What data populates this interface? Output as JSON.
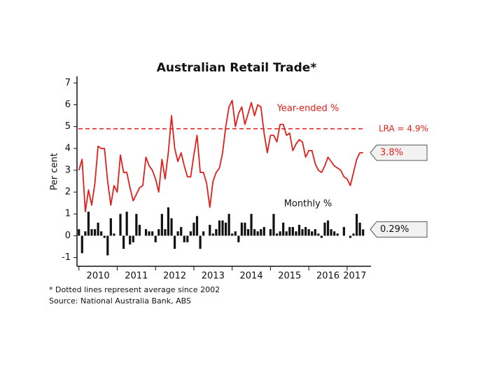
{
  "chart_data": {
    "type": "bar-line",
    "title": "Australian Retail Trade*",
    "ylabel": "Per cent",
    "notes": [
      "* Dotted lines represent average since 2002",
      "Source: National Australia Bank, ABS"
    ],
    "ylim": [
      -1.4,
      7.3
    ],
    "yticks": [
      -1,
      0,
      1,
      2,
      3,
      4,
      5,
      6,
      7
    ],
    "xlim": [
      2009.95,
      2017.55
    ],
    "xticks": [
      {
        "value": 2010.5,
        "label": "2010"
      },
      {
        "value": 2011.5,
        "label": "2011"
      },
      {
        "value": 2012.5,
        "label": "2012"
      },
      {
        "value": 2013.5,
        "label": "2013"
      },
      {
        "value": 2014.5,
        "label": "2014"
      },
      {
        "value": 2015.5,
        "label": "2015"
      },
      {
        "value": 2016.5,
        "label": "2016"
      },
      {
        "value": 2017.2,
        "label": "2017"
      }
    ],
    "xminorticks": [
      2010,
      2011,
      2012,
      2013,
      2014,
      2015,
      2016,
      2017
    ],
    "x": [
      2010.0,
      2010.083,
      2010.167,
      2010.25,
      2010.333,
      2010.417,
      2010.5,
      2010.583,
      2010.667,
      2010.75,
      2010.833,
      2010.917,
      2011.0,
      2011.083,
      2011.167,
      2011.25,
      2011.333,
      2011.417,
      2011.5,
      2011.583,
      2011.667,
      2011.75,
      2011.833,
      2011.917,
      2012.0,
      2012.083,
      2012.167,
      2012.25,
      2012.333,
      2012.417,
      2012.5,
      2012.583,
      2012.667,
      2012.75,
      2012.833,
      2012.917,
      2013.0,
      2013.083,
      2013.167,
      2013.25,
      2013.333,
      2013.417,
      2013.5,
      2013.583,
      2013.667,
      2013.75,
      2013.833,
      2013.917,
      2014.0,
      2014.083,
      2014.167,
      2014.25,
      2014.333,
      2014.417,
      2014.5,
      2014.583,
      2014.667,
      2014.75,
      2014.833,
      2014.917,
      2015.0,
      2015.083,
      2015.167,
      2015.25,
      2015.333,
      2015.417,
      2015.5,
      2015.583,
      2015.667,
      2015.75,
      2015.833,
      2015.917,
      2016.0,
      2016.083,
      2016.167,
      2016.25,
      2016.333,
      2016.417,
      2016.5,
      2016.583,
      2016.667,
      2016.75,
      2016.833,
      2016.917,
      2017.0,
      2017.083,
      2017.167,
      2017.25,
      2017.333,
      2017.417
    ],
    "series": [
      {
        "name": "Monthly %",
        "kind": "bar",
        "color": "#111111",
        "values": [
          0.3,
          -0.8,
          0.2,
          1.1,
          0.3,
          0.3,
          0.6,
          0.2,
          -0.1,
          -0.9,
          0.8,
          0.1,
          0.0,
          1.0,
          -0.6,
          1.1,
          -0.4,
          -0.3,
          1.0,
          0.5,
          0.0,
          0.3,
          0.2,
          0.2,
          -0.3,
          0.3,
          1.0,
          0.3,
          1.3,
          0.8,
          -0.6,
          0.2,
          0.4,
          -0.3,
          -0.3,
          0.2,
          0.6,
          0.9,
          -0.6,
          0.2,
          0.0,
          0.5,
          0.1,
          0.3,
          0.7,
          0.7,
          0.6,
          1.0,
          0.1,
          0.2,
          -0.3,
          0.6,
          0.6,
          0.3,
          1.0,
          0.3,
          0.2,
          0.3,
          0.4,
          0.0,
          0.3,
          1.0,
          0.1,
          0.2,
          0.6,
          0.2,
          0.4,
          0.4,
          0.2,
          0.5,
          0.3,
          0.4,
          0.3,
          0.2,
          0.3,
          0.1,
          -0.1,
          0.6,
          0.7,
          0.3,
          0.2,
          0.1,
          0.0,
          0.4,
          0.0,
          -0.1,
          0.1,
          1.0,
          0.6,
          0.29
        ],
        "value_labels": [
          null,
          null,
          null,
          null,
          null,
          null,
          null,
          null,
          null,
          null,
          null,
          null,
          null,
          null,
          null,
          null,
          null,
          null,
          null,
          null,
          null,
          null,
          null,
          null,
          null,
          null,
          null,
          null,
          null,
          null,
          null,
          null,
          null,
          null,
          null,
          null,
          null,
          null,
          null,
          null,
          null,
          null,
          null,
          null,
          null,
          null,
          null,
          null,
          null,
          null,
          null,
          null,
          null,
          null,
          null,
          null,
          null,
          null,
          null,
          null,
          null,
          null,
          null,
          null,
          null,
          null,
          null,
          null,
          null,
          null,
          null,
          null,
          null,
          null,
          null,
          null,
          null,
          null,
          null,
          null,
          null,
          null,
          null,
          null,
          null,
          null,
          null,
          null,
          null,
          "0.29%"
        ]
      },
      {
        "name": "Year-ended %",
        "kind": "line",
        "color": "#e0201b",
        "values": [
          3.0,
          3.5,
          1.1,
          2.1,
          1.4,
          2.4,
          4.1,
          4.0,
          4.0,
          2.5,
          1.4,
          2.3,
          2.0,
          3.7,
          2.9,
          2.9,
          2.2,
          1.6,
          1.9,
          2.2,
          2.3,
          3.6,
          3.2,
          3.0,
          2.6,
          2.0,
          3.5,
          2.6,
          3.8,
          5.5,
          4.0,
          3.4,
          3.8,
          3.2,
          2.7,
          2.7,
          3.7,
          4.6,
          2.9,
          2.9,
          2.4,
          1.3,
          2.5,
          2.9,
          3.1,
          3.8,
          5.0,
          5.9,
          6.2,
          5.0,
          5.6,
          5.9,
          5.1,
          5.6,
          6.1,
          5.5,
          6.0,
          5.9,
          4.7,
          3.8,
          4.6,
          4.6,
          4.3,
          5.1,
          5.1,
          4.6,
          4.7,
          3.9,
          4.2,
          4.4,
          4.3,
          3.6,
          3.9,
          3.9,
          3.3,
          3.0,
          2.9,
          3.2,
          3.6,
          3.4,
          3.2,
          3.1,
          3.0,
          2.7,
          2.6,
          2.3,
          2.9,
          3.5,
          3.8,
          3.8
        ],
        "value_labels": [
          null,
          null,
          null,
          null,
          null,
          null,
          null,
          null,
          null,
          null,
          null,
          null,
          null,
          null,
          null,
          null,
          null,
          null,
          null,
          null,
          null,
          null,
          null,
          null,
          null,
          null,
          null,
          null,
          null,
          null,
          null,
          null,
          null,
          null,
          null,
          null,
          null,
          null,
          null,
          null,
          null,
          null,
          null,
          null,
          null,
          null,
          null,
          null,
          null,
          null,
          null,
          null,
          null,
          null,
          null,
          null,
          null,
          null,
          null,
          null,
          null,
          null,
          null,
          null,
          null,
          null,
          null,
          null,
          null,
          null,
          null,
          null,
          null,
          null,
          null,
          null,
          null,
          null,
          null,
          null,
          null,
          null,
          null,
          null,
          null,
          null,
          null,
          null,
          null,
          "3.8%"
        ]
      }
    ],
    "reference_lines": [
      {
        "value": 4.9,
        "label": "LRA = 4.9%",
        "color": "#e0201b",
        "dashed": true
      }
    ]
  }
}
